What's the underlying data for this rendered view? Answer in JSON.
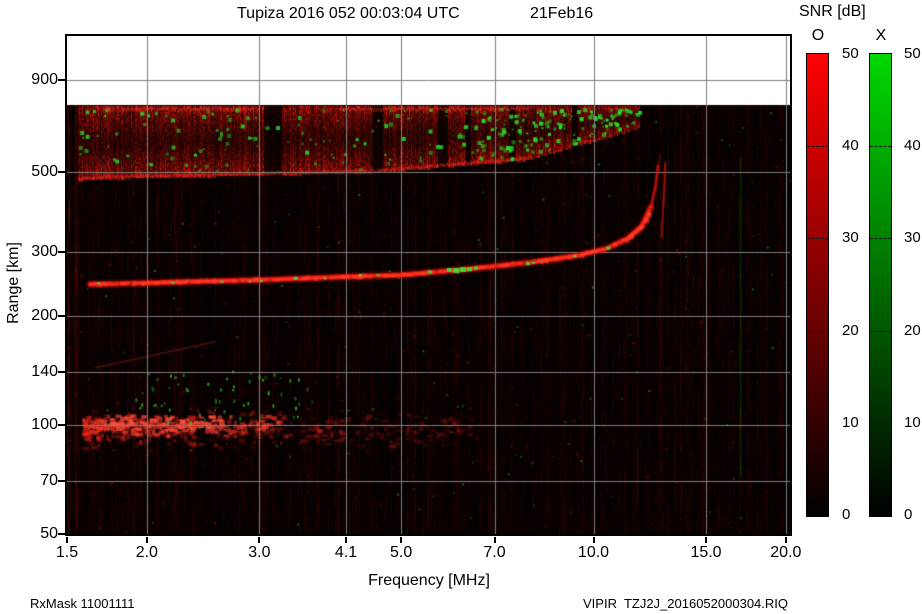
{
  "header": {
    "title": "Tupiza 2016 052 00:03:04 UTC",
    "date": "21Feb16"
  },
  "footer": {
    "rx_mask": "RxMask 11001111",
    "file": "VIPIR  TZJ2J_2016052000304.RIQ"
  },
  "chart_data": {
    "type": "heatmap",
    "title": "Tupiza 2016 052 00:03:04 UTC",
    "date_label": "21Feb16",
    "xlabel": "Frequency [MHz]",
    "ylabel": "Range [km]",
    "x_scale": "log",
    "y_scale": "log",
    "xlim": [
      1.5,
      20.3
    ],
    "ylim": [
      50,
      1190
    ],
    "x_ticks": [
      1.5,
      2.0,
      3.0,
      4.1,
      5.0,
      7.0,
      10.0,
      15.0,
      20.0
    ],
    "x_tick_labels": [
      "1.5",
      "2.0",
      "3.0",
      "4.1",
      "5.0",
      "7.0",
      "10.0",
      "15.0",
      "20.0"
    ],
    "y_ticks": [
      900,
      500,
      300,
      200,
      140,
      100,
      70,
      50
    ],
    "y_tick_labels": [
      "900",
      "500",
      "300",
      "200",
      "140",
      "100",
      "70",
      "50"
    ],
    "grid": true,
    "gridline_color": "#7e7e7e",
    "background": "#ffffff",
    "data_background": "#000000",
    "data_top_km": 765,
    "snr": {
      "label": "SNR [dB]",
      "min": 0,
      "max": 50,
      "ticks": [
        50,
        40,
        30,
        20,
        10,
        0
      ],
      "dash_ticks": [
        40,
        30,
        20,
        10
      ],
      "o_label": "O",
      "x_label": "X",
      "o_color": "#ff0000",
      "x_color": "#00d800"
    },
    "features": {
      "f_trace_o": {
        "name": "F-layer O-mode trace",
        "points": [
          [
            1.63,
            245
          ],
          [
            2.0,
            247
          ],
          [
            2.5,
            250
          ],
          [
            3.0,
            252
          ],
          [
            4.1,
            257
          ],
          [
            5.0,
            260
          ],
          [
            6.1,
            268
          ],
          [
            7.0,
            275
          ],
          [
            8.1,
            283
          ],
          [
            9.4,
            294
          ],
          [
            10.5,
            308
          ],
          [
            11.3,
            328
          ],
          [
            11.9,
            355
          ],
          [
            12.3,
            400
          ],
          [
            12.5,
            455
          ],
          [
            12.62,
            520
          ]
        ],
        "fade_above_km": 400,
        "critical_frequency_mhz": 12.6,
        "green_marks": [
          [
            1.68,
            3
          ],
          [
            2.2,
            3
          ],
          [
            2.62,
            3
          ],
          [
            2.9,
            2
          ],
          [
            3.02,
            3
          ],
          [
            3.42,
            4
          ],
          [
            3.8,
            2
          ],
          [
            4.32,
            3
          ],
          [
            4.6,
            3
          ],
          [
            5.55,
            4
          ],
          [
            5.95,
            5
          ],
          [
            6.1,
            6
          ],
          [
            6.25,
            6
          ],
          [
            6.4,
            5
          ],
          [
            6.55,
            4
          ],
          [
            7.9,
            4
          ],
          [
            8.05,
            3
          ],
          [
            9.35,
            3
          ],
          [
            10.55,
            4
          ]
        ]
      },
      "f_trace_x": {
        "name": "X-mode cusp branch",
        "points": [
          [
            12.78,
            330
          ],
          [
            12.86,
            400
          ],
          [
            12.92,
            470
          ],
          [
            12.95,
            530
          ]
        ]
      },
      "spread_band": {
        "name": "spread echo band",
        "f_range": [
          1.56,
          11.8
        ],
        "top_km": 765,
        "bottom_points": [
          [
            1.56,
            475
          ],
          [
            1.7,
            480
          ],
          [
            4.6,
            500
          ],
          [
            7.8,
            540
          ],
          [
            10.2,
            615
          ],
          [
            11.8,
            665
          ]
        ],
        "gaps_mhz": [
          [
            3.05,
            3.25
          ],
          [
            4.5,
            4.68
          ],
          [
            5.7,
            5.9
          ],
          [
            6.28,
            6.42
          ],
          [
            7.35,
            7.55
          ],
          [
            9.25,
            9.45
          ]
        ],
        "top_streaks_mhz": [
          [
            1.7,
            3.0
          ],
          [
            4.0,
            7.9
          ]
        ],
        "green_cluster_mhz": [
          6.5,
          11.8
        ]
      },
      "e_region": {
        "name": "E-region diffuse echoes",
        "f_range": [
          1.58,
          6.4
        ],
        "center_km": 98,
        "green_center_km": 120
      },
      "streaks": [
        {
          "p1": [
            1.66,
            144
          ],
          "p2": [
            2.56,
            170
          ],
          "alpha": 0.2
        }
      ],
      "green_vline": {
        "f": 17.0,
        "r_range": [
          72,
          550
        ],
        "alpha": 0.16
      }
    }
  }
}
